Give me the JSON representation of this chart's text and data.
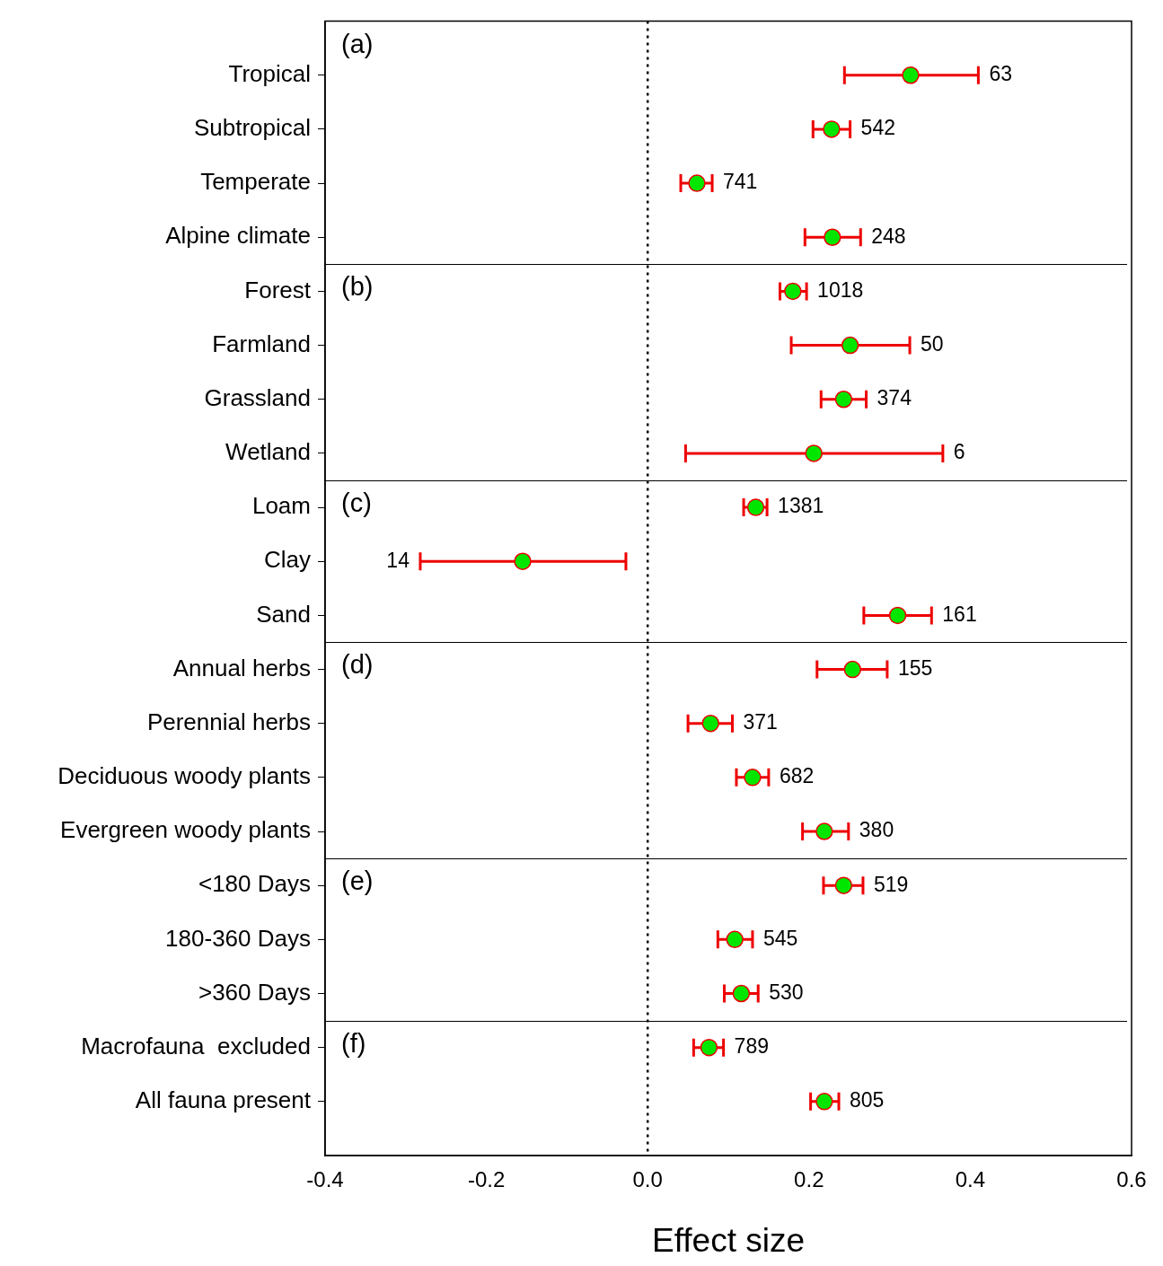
{
  "chart_data": {
    "type": "scatter",
    "orientation": "horizontal",
    "xlabel": "Effect size",
    "categories": [
      "Tropical",
      "Subtropical",
      "Temperate",
      "Alpine climate",
      "Forest",
      "Farmland",
      "Grassland",
      "Wetland",
      "Loam",
      "Clay",
      "Sand",
      "Annual herbs",
      "Perennial herbs",
      "Deciduous woody plants",
      "Evergreen woody plants",
      "<180 Days",
      "180-360 Days",
      ">360 Days",
      "Macrofauna  excluded",
      "All fauna present"
    ],
    "values": [
      0.326,
      0.228,
      0.061,
      0.229,
      0.18,
      0.251,
      0.243,
      0.206,
      0.134,
      -0.155,
      0.31,
      0.254,
      0.078,
      0.13,
      0.219,
      0.243,
      0.108,
      0.116,
      0.076,
      0.219
    ],
    "errors": [
      [
        0.244,
        0.41
      ],
      [
        0.205,
        0.251
      ],
      [
        0.041,
        0.08
      ],
      [
        0.195,
        0.264
      ],
      [
        0.164,
        0.197
      ],
      [
        0.178,
        0.325
      ],
      [
        0.215,
        0.271
      ],
      [
        0.047,
        0.366
      ],
      [
        0.119,
        0.148
      ],
      [
        -0.282,
        -0.027
      ],
      [
        0.268,
        0.352
      ],
      [
        0.21,
        0.297
      ],
      [
        0.05,
        0.105
      ],
      [
        0.11,
        0.15
      ],
      [
        0.192,
        0.249
      ],
      [
        0.218,
        0.267
      ],
      [
        0.087,
        0.13
      ],
      [
        0.095,
        0.137
      ],
      [
        0.057,
        0.094
      ],
      [
        0.202,
        0.237
      ]
    ],
    "color": "#00e600",
    "marker": "circle",
    "legend": false,
    "grid": false,
    "xlim": [
      -0.4,
      0.6
    ],
    "xticks": [
      {
        "value": -0.4,
        "label": "-0.4"
      },
      {
        "value": -0.2,
        "label": "-0.2"
      },
      {
        "value": 0,
        "label": "0.0"
      },
      {
        "value": 0.2,
        "label": "0.2"
      },
      {
        "value": 0.4,
        "label": "0.4"
      },
      {
        "value": 0.6,
        "label": "0.6"
      }
    ],
    "ref_lines": [
      {
        "axis": "x",
        "value": 0,
        "line_style": "dotted",
        "color": "#000000"
      }
    ],
    "annotations": [
      "(a)",
      "(b)",
      "(c)",
      "(d)",
      "(e)",
      "(f)",
      {
        "text": "63",
        "x": 0.41,
        "y": "Tropical"
      },
      {
        "text": "542",
        "x": 0.251,
        "y": "Subtropical"
      },
      {
        "text": "741",
        "x": 0.08,
        "y": "Temperate"
      },
      {
        "text": "248",
        "x": 0.264,
        "y": "Alpine climate"
      },
      {
        "text": "1018",
        "x": 0.197,
        "y": "Forest"
      },
      {
        "text": "50",
        "x": 0.325,
        "y": "Farmland"
      },
      {
        "text": "374",
        "x": 0.271,
        "y": "Grassland"
      },
      {
        "text": "6",
        "x": 0.366,
        "y": "Wetland"
      },
      {
        "text": "1381",
        "x": 0.148,
        "y": "Loam"
      },
      {
        "text": "14",
        "x": -0.282,
        "y": "Clay"
      },
      {
        "text": "161",
        "x": 0.352,
        "y": "Sand"
      },
      {
        "text": "155",
        "x": 0.297,
        "y": "Annual herbs"
      },
      {
        "text": "371",
        "x": 0.105,
        "y": "Perennial herbs"
      },
      {
        "text": "682",
        "x": 0.15,
        "y": "Deciduous woody plants"
      },
      {
        "text": "380",
        "x": 0.249,
        "y": "Evergreen woody plants"
      },
      {
        "text": "519",
        "x": 0.267,
        "y": "<180 Days"
      },
      {
        "text": "545",
        "x": 0.13,
        "y": "180-360 Days"
      },
      {
        "text": "530",
        "x": 0.137,
        "y": ">360 Days"
      },
      {
        "text": "789",
        "x": 0.094,
        "y": "Macrofauna  excluded"
      },
      {
        "text": "805",
        "x": 0.237,
        "y": "All fauna present"
      }
    ]
  }
}
